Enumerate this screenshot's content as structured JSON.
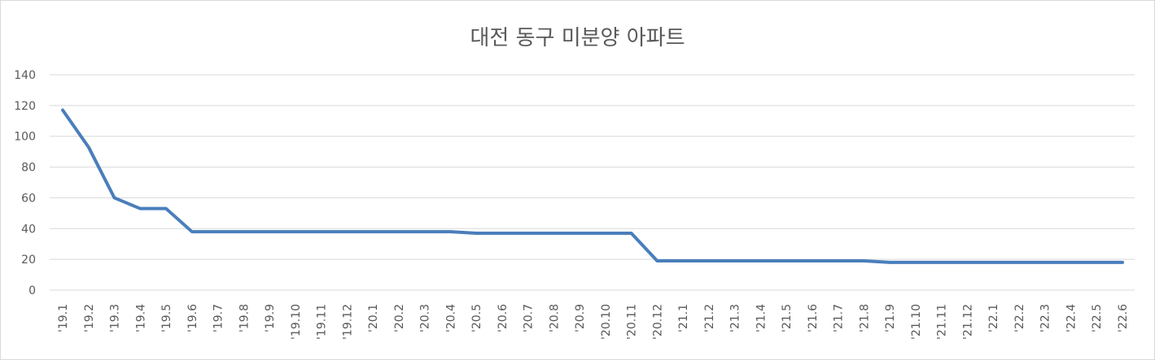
{
  "chart_data": {
    "type": "line",
    "title": "대전 동구 미분양 아파트",
    "xlabel": "",
    "ylabel": "",
    "ylim": [
      0,
      140
    ],
    "yticks": [
      0,
      20,
      40,
      60,
      80,
      100,
      120,
      140
    ],
    "grid": true,
    "legend": "none",
    "categories": [
      "'19.1",
      "'19.2",
      "'19.3",
      "'19.4",
      "'19.5",
      "'19.6",
      "'19.7",
      "'19.8",
      "'19.9",
      "'19.10",
      "'19.11",
      "'19.12",
      "'20.1",
      "'20.2",
      "'20.3",
      "'20.4",
      "'20.5",
      "'20.6",
      "'20.7",
      "'20.8",
      "'20.9",
      "'20.10",
      "'20.11",
      "'20.12",
      "'21.1",
      "'21.2",
      "'21.3",
      "'21.4",
      "'21.5",
      "'21.6",
      "'21.7",
      "'21.8",
      "'21.9",
      "'21.10",
      "'21.11",
      "'21.12",
      "'22.1",
      "'22.2",
      "'22.3",
      "'22.4",
      "'22.5",
      "'22.6"
    ],
    "series": [
      {
        "values": [
          117,
          93,
          60,
          53,
          53,
          38,
          38,
          38,
          38,
          38,
          38,
          38,
          38,
          38,
          38,
          38,
          37,
          37,
          37,
          37,
          37,
          37,
          37,
          19,
          19,
          19,
          19,
          19,
          19,
          19,
          19,
          19,
          18,
          18,
          18,
          18,
          18,
          18,
          18,
          18,
          18,
          18
        ]
      }
    ],
    "colors": {
      "line": "#4a7ebb",
      "grid": "#d9d9d9",
      "text": "#595959"
    }
  }
}
